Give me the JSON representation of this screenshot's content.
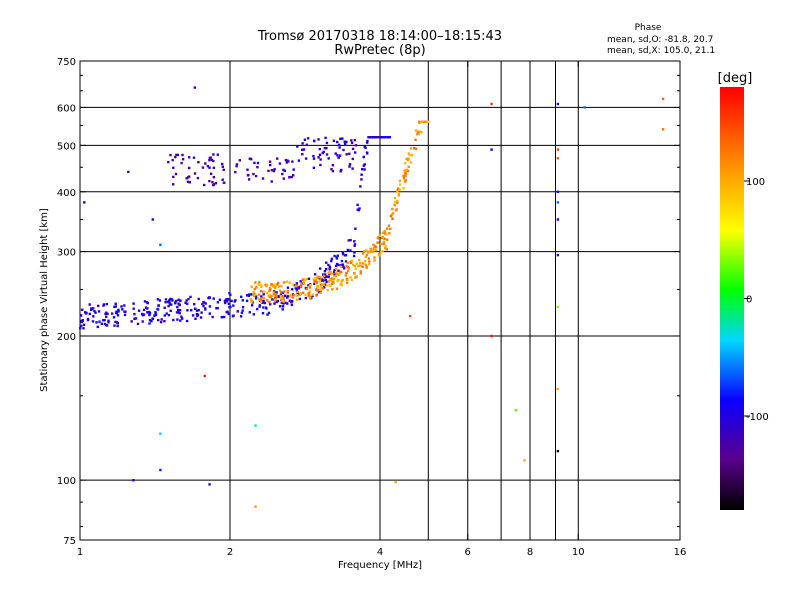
{
  "chart_data": {
    "type": "scatter",
    "title": "Tromsø 20170318 18:14:00–18:15:43",
    "subtitle": "RwPretec (8p)",
    "xlabel": "Frequency [MHz]",
    "ylabel": "Stationary phase Virtual Height [km]",
    "x_scale": "log",
    "y_scale": "log",
    "xlim": [
      1,
      16
    ],
    "ylim": [
      75,
      750
    ],
    "x_ticks": [
      1,
      2,
      4,
      6,
      8,
      10,
      16
    ],
    "x_tick_labels": [
      "1",
      "2",
      "4",
      "6",
      "8",
      "10",
      "16"
    ],
    "y_ticks": [
      75,
      100,
      200,
      300,
      400,
      500,
      600,
      750
    ],
    "y_tick_labels": [
      "75",
      "100",
      "200",
      "300",
      "400",
      "500",
      "600",
      "750"
    ],
    "grid": true,
    "info": {
      "title": "Phase",
      "line1": "mean, sd,O: -81.8, 20.7",
      "line2": "mean, sd,X: 105.0, 21.1"
    },
    "colorbar": {
      "label": "[deg]",
      "range": [
        -180,
        180
      ],
      "ticks": [
        100,
        0,
        -100
      ],
      "tick_labels": [
        "100",
        "0",
        "-100"
      ],
      "colormap": "rainbow"
    },
    "traces": [
      {
        "name": "",
        "freq_range": [
          1.0,
          4.2
        ],
        "height_range": [
          212,
          520
        ],
        "phase_mean": -100,
        "phase_spread": 20,
        "count": 420
      },
      {
        "name": "",
        "freq_range": [
          2.2,
          5.0
        ],
        "height_range": [
          240,
          560
        ],
        "phase_mean": 110,
        "phase_spread": 25,
        "count": 330
      }
    ],
    "patches": [
      {
        "freq_range": [
          1.5,
          1.95
        ],
        "height_range": [
          410,
          480
        ],
        "phase_mean": -130,
        "count": 50
      },
      {
        "freq_range": [
          2.0,
          2.7
        ],
        "height_range": [
          420,
          470
        ],
        "phase_mean": -120,
        "count": 40
      },
      {
        "freq_range": [
          2.7,
          3.6
        ],
        "height_range": [
          440,
          520
        ],
        "phase_mean": -110,
        "count": 60
      }
    ],
    "points": [
      {
        "x": 1.02,
        "y": 380,
        "phase": -110
      },
      {
        "x": 1.25,
        "y": 440,
        "phase": -120
      },
      {
        "x": 1.4,
        "y": 350,
        "phase": -100
      },
      {
        "x": 1.45,
        "y": 310,
        "phase": -60
      },
      {
        "x": 1.45,
        "y": 125,
        "phase": -30
      },
      {
        "x": 1.45,
        "y": 105,
        "phase": -80
      },
      {
        "x": 1.28,
        "y": 100,
        "phase": -90
      },
      {
        "x": 1.7,
        "y": 660,
        "phase": -130
      },
      {
        "x": 1.78,
        "y": 165,
        "phase": 170
      },
      {
        "x": 1.82,
        "y": 98,
        "phase": -120
      },
      {
        "x": 2.25,
        "y": 88,
        "phase": 110
      },
      {
        "x": 2.25,
        "y": 130,
        "phase": -20
      },
      {
        "x": 4.3,
        "y": 99,
        "phase": 100
      },
      {
        "x": 4.6,
        "y": 220,
        "phase": 150
      },
      {
        "x": 6.7,
        "y": 610,
        "phase": 160
      },
      {
        "x": 6.7,
        "y": 490,
        "phase": -100
      },
      {
        "x": 6.7,
        "y": 200,
        "phase": 175
      },
      {
        "x": 7.5,
        "y": 140,
        "phase": 20
      },
      {
        "x": 7.8,
        "y": 110,
        "phase": 100
      },
      {
        "x": 9.1,
        "y": 610,
        "phase": -110
      },
      {
        "x": 9.1,
        "y": 490,
        "phase": 150
      },
      {
        "x": 9.1,
        "y": 470,
        "phase": 140
      },
      {
        "x": 9.1,
        "y": 400,
        "phase": -90
      },
      {
        "x": 9.1,
        "y": 380,
        "phase": -60
      },
      {
        "x": 9.1,
        "y": 350,
        "phase": -100
      },
      {
        "x": 9.1,
        "y": 295,
        "phase": -110
      },
      {
        "x": 9.1,
        "y": 230,
        "phase": 30
      },
      {
        "x": 9.1,
        "y": 155,
        "phase": 100
      },
      {
        "x": 9.1,
        "y": 115,
        "phase": -170
      },
      {
        "x": 10.3,
        "y": 600,
        "phase": -60
      },
      {
        "x": 14.8,
        "y": 625,
        "phase": 140
      },
      {
        "x": 14.8,
        "y": 540,
        "phase": 130
      }
    ]
  }
}
